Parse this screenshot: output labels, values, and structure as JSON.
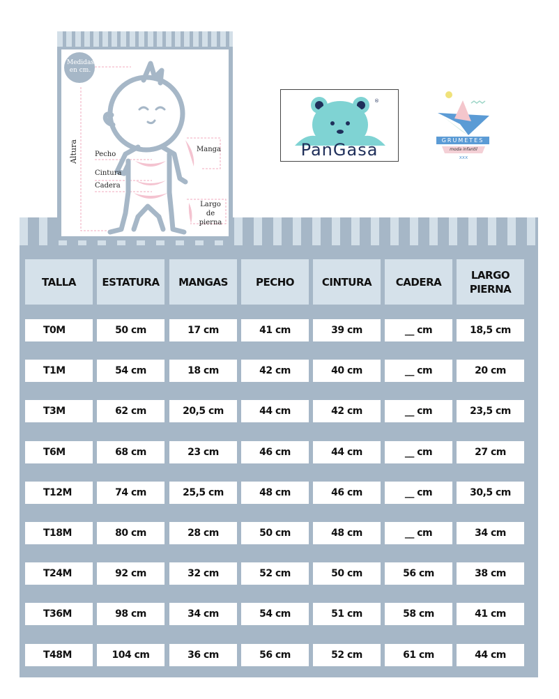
{
  "diagram": {
    "badge": "Medidas en cm.",
    "labels": {
      "altura": "Altura",
      "pecho": "Pecho",
      "cintura": "Cintura",
      "cadera": "Cadera",
      "manga": "Manga",
      "largo_pierna": "Largo de pierna"
    }
  },
  "logos": {
    "pangasa": "PanGasa",
    "grumetes": "GRUMETES",
    "grumetes_tagline": "moda infantil"
  },
  "colors": {
    "frame": "#a6b7c7",
    "header": "#d5e1ea",
    "pink": "#f0b8c8",
    "pangasa_teal": "#7fd3d3"
  },
  "table": {
    "headers": [
      "TALLA",
      "ESTATURA",
      "MANGAS",
      "PECHO",
      "CINTURA",
      "CADERA",
      "LARGO PIERNA"
    ],
    "rows": [
      [
        "T0M",
        "50 cm",
        "17 cm",
        "41 cm",
        "39 cm",
        "__ cm",
        "18,5 cm"
      ],
      [
        "T1M",
        "54 cm",
        "18 cm",
        "42 cm",
        "40 cm",
        "__ cm",
        "20 cm"
      ],
      [
        "T3M",
        "62 cm",
        "20,5 cm",
        "44 cm",
        "42 cm",
        "__ cm",
        "23,5 cm"
      ],
      [
        "T6M",
        "68 cm",
        "23 cm",
        "46 cm",
        "44 cm",
        "__ cm",
        "27 cm"
      ],
      [
        "T12M",
        "74 cm",
        "25,5 cm",
        "48 cm",
        "46 cm",
        "__ cm",
        "30,5 cm"
      ],
      [
        "T18M",
        "80 cm",
        "28 cm",
        "50 cm",
        "48 cm",
        "__ cm",
        "34 cm"
      ],
      [
        "T24M",
        "92 cm",
        "32 cm",
        "52 cm",
        "50 cm",
        "56 cm",
        "38 cm"
      ],
      [
        "T36M",
        "98 cm",
        "34 cm",
        "54 cm",
        "51 cm",
        "58 cm",
        "41 cm"
      ],
      [
        "T48M",
        "104 cm",
        "36 cm",
        "56 cm",
        "52 cm",
        "61 cm",
        "44 cm"
      ]
    ]
  }
}
